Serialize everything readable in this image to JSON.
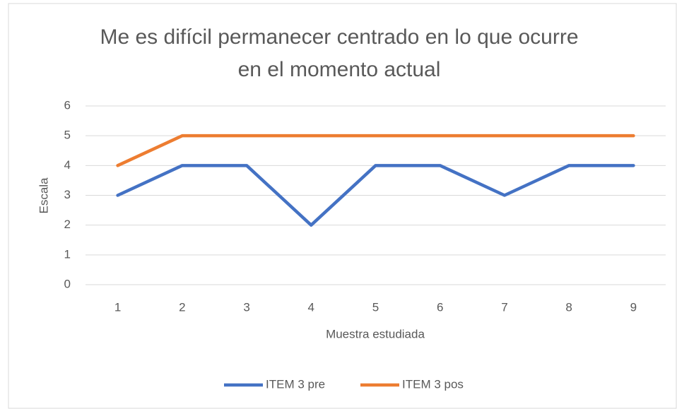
{
  "chart_data": {
    "type": "line",
    "title": "Me es difícil permanecer centrado en lo que ocurre en el momento actual",
    "x_label": "Muestra estudiada",
    "y_label": "Escala",
    "categories": [
      1,
      2,
      3,
      4,
      5,
      6,
      7,
      8,
      9
    ],
    "series": [
      {
        "name": "ITEM 3 pre",
        "color": "#4472c4",
        "values": [
          3,
          4,
          4,
          2,
          4,
          4,
          3,
          4,
          4
        ]
      },
      {
        "name": "ITEM 3 pos",
        "color": "#ed7d31",
        "values": [
          4,
          5,
          5,
          5,
          5,
          5,
          5,
          5,
          5
        ]
      }
    ],
    "ylim": [
      0,
      6
    ],
    "yticks": [
      0,
      1,
      2,
      3,
      4,
      5,
      6
    ],
    "grid": true,
    "legend": "bottom"
  }
}
